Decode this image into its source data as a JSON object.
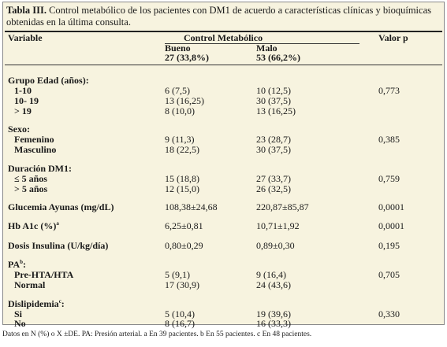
{
  "caption": {
    "label": "Tabla III.",
    "text": " Control metabólico de los pacientes con DM1 de acuerdo a características clínicas y bioquímicas obtenidas en la última consulta."
  },
  "header": {
    "variable": "Variable",
    "control": "Control Metabólico",
    "valor_p": "Valor p",
    "bueno": "Bueno",
    "bueno_n": "27 (33,8%)",
    "malo": "Malo",
    "malo_n": "53 (66,2%)"
  },
  "groups": {
    "edad": {
      "title": "Grupo Edad (años):",
      "rows": [
        {
          "label": "1-10",
          "bueno": "6 (7,5)",
          "malo": "10 (12,5)",
          "p": "0,773"
        },
        {
          "label": "10- 19",
          "bueno": "13 (16,25)",
          "malo": "30 (37,5)",
          "p": ""
        },
        {
          "label": "> 19",
          "bueno": "8 (10,0)",
          "malo": "13 (16,25)",
          "p": ""
        }
      ]
    },
    "sexo": {
      "title": "Sexo:",
      "rows": [
        {
          "label": "Femenino",
          "bueno": "9 (11,3)",
          "malo": "23 (28,7)",
          "p": "0,385"
        },
        {
          "label": "Masculino",
          "bueno": "18 (22,5)",
          "malo": "30 (37,5)",
          "p": ""
        }
      ]
    },
    "duracion": {
      "title": "Duración DM1:",
      "rows": [
        {
          "label": "≤ 5 años",
          "bueno": "15 (18,8)",
          "malo": "27 (33,7)",
          "p": "0,759"
        },
        {
          "label": "> 5 años",
          "bueno": "12 (15,0)",
          "malo": "26 (32,5)",
          "p": ""
        }
      ]
    },
    "glucemia": {
      "title": "Glucemia Ayunas (mg/dL)",
      "bueno": "108,38±24,68",
      "malo": "220,87±85,87",
      "p": "0,0001"
    },
    "hba1c": {
      "title": "Hb A1c (%)",
      "sup": "a",
      "bueno": "6,25±0,81",
      "malo": "10,71±1,92",
      "p": "0,0001"
    },
    "dosis": {
      "title": "Dosis Insulina (U/kg/día)",
      "bueno": "0,80±0,29",
      "malo": "0,89±0,30",
      "p": "0,195"
    },
    "pa": {
      "title": "PA",
      "sup": "b",
      "suffix": ":",
      "rows": [
        {
          "label": "Pre-HTA/HTA",
          "bueno": "5 (9,1)",
          "malo": "9 (16,4)",
          "p": "0,705"
        },
        {
          "label": "Normal",
          "bueno": "17 (30,9)",
          "malo": "24 (43,6)",
          "p": ""
        }
      ]
    },
    "dislip": {
      "title": "Dislipidemia",
      "sup": "c",
      "suffix": ":",
      "rows": [
        {
          "label": "Si",
          "bueno": "5 (10,4)",
          "malo": "19 (39,6)",
          "p": "0,330"
        },
        {
          "label": "No",
          "bueno": "8 (16,7)",
          "malo": "16 (33,3)",
          "p": ""
        }
      ]
    }
  },
  "footnote": "Datos en N (%) o X ±DE.   PA: Presión arterial.   a En 39 pacientes.   b En 55 pacientes.      c En 48 pacientes."
}
